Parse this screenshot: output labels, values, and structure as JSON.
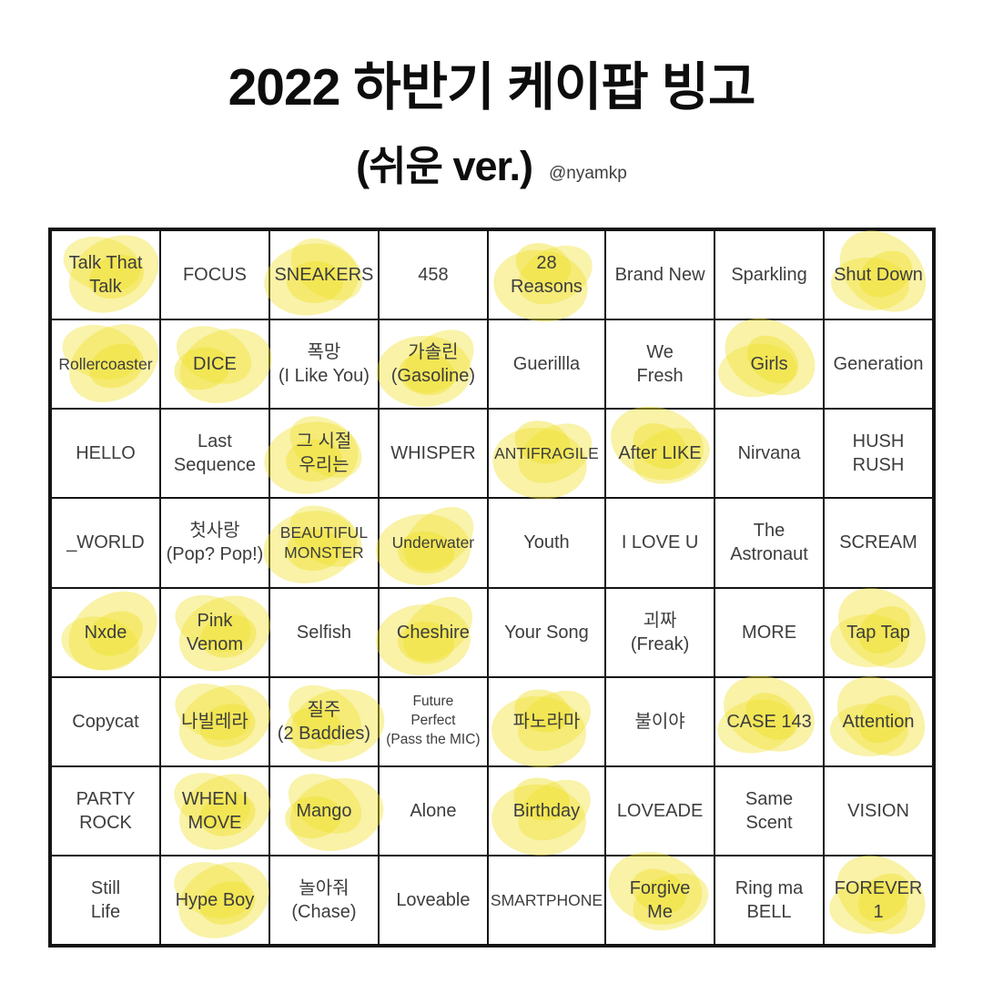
{
  "header": {
    "title": "2022 하반기 케이팝 빙고",
    "subtitle": "(쉬운 ver.)",
    "handle": "@nyamkp"
  },
  "colors": {
    "highlight_yellow": "#F0E12D",
    "grid_border": "#141414",
    "cell_text": "#3D3D3D",
    "title_text": "#0D0D0D"
  },
  "grid": {
    "rows": 8,
    "cols": 8,
    "cells": [
      {
        "label": "Talk That\nTalk",
        "checked": true
      },
      {
        "label": "FOCUS",
        "checked": false
      },
      {
        "label": "SNEAKERS",
        "checked": true
      },
      {
        "label": "458",
        "checked": false
      },
      {
        "label": "28\nReasons",
        "checked": true
      },
      {
        "label": "Brand New",
        "checked": false
      },
      {
        "label": "Sparkling",
        "checked": false
      },
      {
        "label": "Shut Down",
        "checked": true
      },
      {
        "label": "Rollercoaster",
        "checked": true,
        "size": "s"
      },
      {
        "label": "DICE",
        "checked": true
      },
      {
        "label": "폭망\n(I Like You)",
        "checked": false
      },
      {
        "label": "가솔린\n(Gasoline)",
        "checked": true
      },
      {
        "label": "Guerillla",
        "checked": false
      },
      {
        "label": "We\nFresh",
        "checked": false
      },
      {
        "label": "Girls",
        "checked": true
      },
      {
        "label": "Generation",
        "checked": false
      },
      {
        "label": "HELLO",
        "checked": false
      },
      {
        "label": "Last\nSequence",
        "checked": false
      },
      {
        "label": "그 시절\n우리는",
        "checked": true
      },
      {
        "label": "WHISPER",
        "checked": false
      },
      {
        "label": "ANTIFRAGILE",
        "checked": true,
        "size": "s"
      },
      {
        "label": "After LIKE",
        "checked": true
      },
      {
        "label": "Nirvana",
        "checked": false
      },
      {
        "label": "HUSH\nRUSH",
        "checked": false
      },
      {
        "label": "_WORLD",
        "checked": false
      },
      {
        "label": "첫사랑\n(Pop? Pop!)",
        "checked": false
      },
      {
        "label": "BEAUTIFUL\nMONSTER",
        "checked": true,
        "size": "s"
      },
      {
        "label": "Underwater",
        "checked": true,
        "size": "s"
      },
      {
        "label": "Youth",
        "checked": false
      },
      {
        "label": "I LOVE U",
        "checked": false
      },
      {
        "label": "The\nAstronaut",
        "checked": false
      },
      {
        "label": "SCREAM",
        "checked": false
      },
      {
        "label": "Nxde",
        "checked": true
      },
      {
        "label": "Pink\nVenom",
        "checked": true
      },
      {
        "label": "Selfish",
        "checked": false
      },
      {
        "label": "Cheshire",
        "checked": true
      },
      {
        "label": "Your Song",
        "checked": false
      },
      {
        "label": "괴짜\n(Freak)",
        "checked": false
      },
      {
        "label": "MORE",
        "checked": false
      },
      {
        "label": "Tap Tap",
        "checked": true
      },
      {
        "label": "Copycat",
        "checked": false
      },
      {
        "label": "나빌레라",
        "checked": true
      },
      {
        "label": "질주\n(2 Baddies)",
        "checked": true
      },
      {
        "label": "Future\nPerfect\n(Pass the MIC)",
        "checked": false,
        "size": "xs"
      },
      {
        "label": "파노라마",
        "checked": true
      },
      {
        "label": "불이야",
        "checked": false
      },
      {
        "label": "CASE 143",
        "checked": true
      },
      {
        "label": "Attention",
        "checked": true
      },
      {
        "label": "PARTY\nROCK",
        "checked": false
      },
      {
        "label": "WHEN I\nMOVE",
        "checked": true
      },
      {
        "label": "Mango",
        "checked": true
      },
      {
        "label": "Alone",
        "checked": false
      },
      {
        "label": "Birthday",
        "checked": true
      },
      {
        "label": "LOVEADE",
        "checked": false
      },
      {
        "label": "Same\nScent",
        "checked": false
      },
      {
        "label": "VISION",
        "checked": false
      },
      {
        "label": "Still\nLife",
        "checked": false
      },
      {
        "label": "Hype Boy",
        "checked": true
      },
      {
        "label": "놀아줘\n(Chase)",
        "checked": false
      },
      {
        "label": "Loveable",
        "checked": false
      },
      {
        "label": "SMARTPHONE",
        "checked": false,
        "size": "s"
      },
      {
        "label": "Forgive\nMe",
        "checked": true
      },
      {
        "label": "Ring ma\nBELL",
        "checked": false
      },
      {
        "label": "FOREVER\n1",
        "checked": true
      }
    ]
  }
}
